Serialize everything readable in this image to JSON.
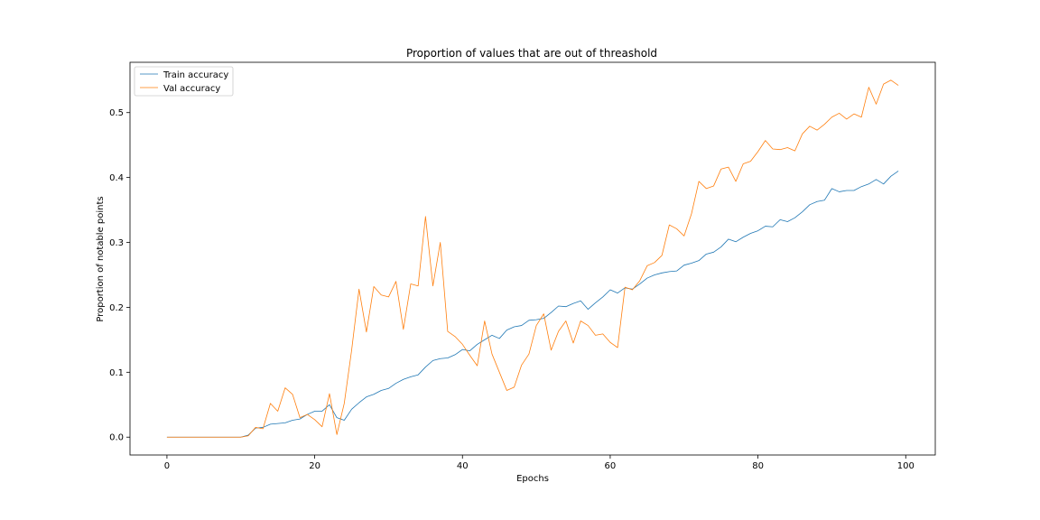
{
  "chart_data": {
    "type": "line",
    "title": "Proportion of values that are out of threashold",
    "xlabel": "Epochs",
    "ylabel": "Proportion of notable points",
    "xlim": [
      -5,
      104
    ],
    "ylim": [
      -0.0275,
      0.5775
    ],
    "xticks": [
      0,
      20,
      40,
      60,
      80,
      100
    ],
    "yticks": [
      0.0,
      0.1,
      0.2,
      0.3,
      0.4,
      0.5
    ],
    "xtick_labels": [
      "0",
      "20",
      "40",
      "60",
      "80",
      "100"
    ],
    "ytick_labels": [
      "0.0",
      "0.1",
      "0.2",
      "0.3",
      "0.4",
      "0.5"
    ],
    "grid": false,
    "legend_position": "top-left",
    "series": [
      {
        "name": "Train accuracy",
        "color": "#1f77b4",
        "x": [
          0,
          1,
          2,
          3,
          4,
          5,
          6,
          7,
          8,
          9,
          10,
          11,
          12,
          13,
          14,
          15,
          16,
          17,
          18,
          19,
          20,
          21,
          22,
          23,
          24,
          25,
          26,
          27,
          28,
          29,
          30,
          31,
          32,
          33,
          34,
          35,
          36,
          37,
          38,
          39,
          40,
          41,
          42,
          43,
          44,
          45,
          46,
          47,
          48,
          49,
          50,
          51,
          52,
          53,
          54,
          55,
          56,
          57,
          58,
          59,
          60,
          61,
          62,
          63,
          64,
          65,
          66,
          67,
          68,
          69,
          70,
          71,
          72,
          73,
          74,
          75,
          76,
          77,
          78,
          79,
          80,
          81,
          82,
          83,
          84,
          85,
          86,
          87,
          88,
          89,
          90,
          91,
          92,
          93,
          94,
          95,
          96,
          97,
          98,
          99
        ],
        "values": [
          0,
          0,
          0,
          0,
          0,
          0,
          0,
          0,
          0,
          0,
          0,
          0.003,
          0.014,
          0.015,
          0.02,
          0.021,
          0.022,
          0.026,
          0.028,
          0.035,
          0.04,
          0.04,
          0.05,
          0.03,
          0.026,
          0.043,
          0.053,
          0.062,
          0.066,
          0.072,
          0.075,
          0.083,
          0.089,
          0.093,
          0.096,
          0.108,
          0.118,
          0.121,
          0.122,
          0.127,
          0.135,
          0.133,
          0.143,
          0.15,
          0.157,
          0.152,
          0.165,
          0.17,
          0.172,
          0.18,
          0.181,
          0.183,
          0.192,
          0.202,
          0.201,
          0.206,
          0.21,
          0.197,
          0.207,
          0.216,
          0.227,
          0.222,
          0.23,
          0.228,
          0.236,
          0.245,
          0.25,
          0.253,
          0.255,
          0.256,
          0.265,
          0.268,
          0.272,
          0.282,
          0.285,
          0.293,
          0.305,
          0.301,
          0.308,
          0.314,
          0.318,
          0.325,
          0.324,
          0.335,
          0.332,
          0.338,
          0.347,
          0.358,
          0.363,
          0.365,
          0.383,
          0.378,
          0.38,
          0.38,
          0.386,
          0.39,
          0.397,
          0.39,
          0.402,
          0.41
        ]
      },
      {
        "name": "Val accuracy",
        "color": "#ff7f0e",
        "x": [
          0,
          1,
          2,
          3,
          4,
          5,
          6,
          7,
          8,
          9,
          10,
          11,
          12,
          13,
          14,
          15,
          16,
          17,
          18,
          19,
          20,
          21,
          22,
          23,
          24,
          25,
          26,
          27,
          28,
          29,
          30,
          31,
          32,
          33,
          34,
          35,
          36,
          37,
          38,
          39,
          40,
          41,
          42,
          43,
          44,
          45,
          46,
          47,
          48,
          49,
          50,
          51,
          52,
          53,
          54,
          55,
          56,
          57,
          58,
          59,
          60,
          61,
          62,
          63,
          64,
          65,
          66,
          67,
          68,
          69,
          70,
          71,
          72,
          73,
          74,
          75,
          76,
          77,
          78,
          79,
          80,
          81,
          82,
          83,
          84,
          85,
          86,
          87,
          88,
          89,
          90,
          91,
          92,
          93,
          94,
          95,
          96,
          97,
          98,
          99
        ],
        "values": [
          0,
          0,
          0,
          0,
          0,
          0,
          0,
          0,
          0,
          0,
          0,
          0.002,
          0.015,
          0.013,
          0.052,
          0.04,
          0.076,
          0.066,
          0.03,
          0.035,
          0.027,
          0.016,
          0.067,
          0.004,
          0.052,
          0.134,
          0.228,
          0.162,
          0.232,
          0.219,
          0.216,
          0.24,
          0.166,
          0.236,
          0.233,
          0.34,
          0.233,
          0.3,
          0.163,
          0.155,
          0.143,
          0.126,
          0.11,
          0.179,
          0.128,
          0.1,
          0.072,
          0.077,
          0.111,
          0.128,
          0.172,
          0.19,
          0.134,
          0.163,
          0.179,
          0.145,
          0.179,
          0.172,
          0.157,
          0.159,
          0.146,
          0.138,
          0.231,
          0.227,
          0.241,
          0.264,
          0.269,
          0.28,
          0.327,
          0.321,
          0.31,
          0.344,
          0.394,
          0.383,
          0.387,
          0.413,
          0.416,
          0.394,
          0.421,
          0.425,
          0.44,
          0.457,
          0.444,
          0.443,
          0.446,
          0.441,
          0.467,
          0.479,
          0.473,
          0.482,
          0.493,
          0.499,
          0.49,
          0.498,
          0.493,
          0.539,
          0.513,
          0.544,
          0.55,
          0.542
        ]
      }
    ]
  }
}
